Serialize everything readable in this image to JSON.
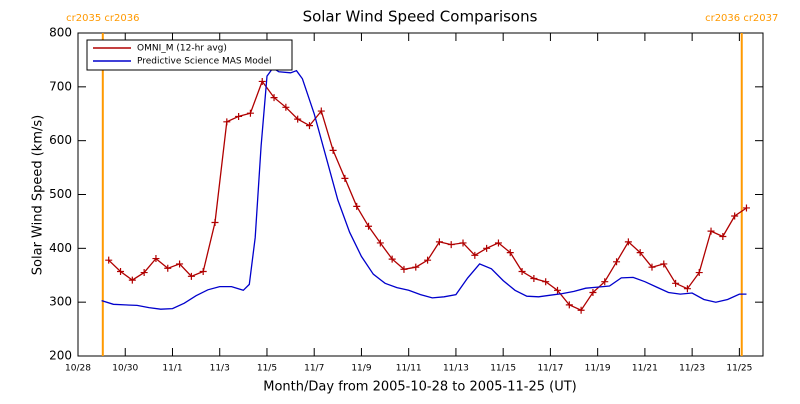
{
  "chart_data": {
    "type": "line",
    "title": "Solar Wind Speed Comparisons",
    "x_label": "Month/Day from 2005-10-28 to 2005-11-25 (UT)",
    "y_label": "Solar Wind Speed (km/s)",
    "xlim": [
      0,
      29
    ],
    "ylim": [
      200,
      800
    ],
    "xticks": [
      {
        "value": 0,
        "label": "10/28"
      },
      {
        "value": 2,
        "label": "10/30"
      },
      {
        "value": 4,
        "label": "11/1"
      },
      {
        "value": 6,
        "label": "11/3"
      },
      {
        "value": 8,
        "label": "11/5"
      },
      {
        "value": 10,
        "label": "11/7"
      },
      {
        "value": 12,
        "label": "11/9"
      },
      {
        "value": 14,
        "label": "11/11"
      },
      {
        "value": 16,
        "label": "11/13"
      },
      {
        "value": 18,
        "label": "11/15"
      },
      {
        "value": 20,
        "label": "11/17"
      },
      {
        "value": 22,
        "label": "11/19"
      },
      {
        "value": 24,
        "label": "11/21"
      },
      {
        "value": 26,
        "label": "11/23"
      },
      {
        "value": 28,
        "label": "11/25"
      }
    ],
    "yticks": [
      200,
      300,
      400,
      500,
      600,
      700,
      800
    ],
    "legend": "upper left",
    "annotations": [
      {
        "text": "cr2035 cr2036",
        "x": 1.05,
        "color": "#ff9900"
      },
      {
        "text": "cr2036 cr2037",
        "x": 28.1,
        "color": "#ff9900"
      }
    ],
    "series": [
      {
        "name": "OMNI_M (12-hr avg)",
        "color": "#b00000",
        "marker": "+",
        "x": [
          1.3,
          1.8,
          2.3,
          2.8,
          3.3,
          3.8,
          4.3,
          4.8,
          5.3,
          5.8,
          6.3,
          6.8,
          7.3,
          7.8,
          8.3,
          8.8,
          9.3,
          9.8,
          10.3,
          10.8,
          11.3,
          11.8,
          12.3,
          12.8,
          13.3,
          13.8,
          14.3,
          14.8,
          15.3,
          15.8,
          16.3,
          16.8,
          17.3,
          17.8,
          18.3,
          18.8,
          19.3,
          19.8,
          20.3,
          20.8,
          21.3,
          21.8,
          22.3,
          22.8,
          23.3,
          23.8,
          24.3,
          24.8,
          25.3,
          25.8,
          26.3,
          26.8,
          27.3,
          27.8,
          28.3
        ],
        "values": [
          378,
          357,
          341,
          355,
          381,
          363,
          371,
          348,
          357,
          448,
          635,
          645,
          651,
          710,
          680,
          662,
          640,
          628,
          655,
          582,
          530,
          478,
          441,
          410,
          380,
          361,
          365,
          378,
          412,
          407,
          410,
          387,
          400,
          410,
          392,
          357,
          344,
          338,
          322,
          295,
          285,
          318,
          338,
          375,
          412,
          392,
          365,
          371,
          335,
          325,
          355,
          432,
          422,
          460,
          475
        ]
      },
      {
        "name": "Predictive Science MAS Model",
        "color": "#0000cc",
        "x": [
          1.0,
          1.5,
          2.0,
          2.5,
          3.0,
          3.5,
          4.0,
          4.5,
          5.0,
          5.5,
          6.0,
          6.5,
          7.0,
          7.25,
          7.5,
          7.75,
          8.0,
          8.25,
          8.5,
          9.0,
          9.25,
          9.5,
          10.0,
          10.5,
          11.0,
          11.5,
          12.0,
          12.5,
          13.0,
          13.5,
          14.0,
          14.5,
          15.0,
          15.5,
          16.0,
          16.5,
          17.0,
          17.5,
          18.0,
          18.5,
          19.0,
          19.5,
          20.0,
          20.5,
          21.0,
          21.5,
          22.0,
          22.5,
          23.0,
          23.5,
          24.0,
          24.5,
          25.0,
          25.5,
          26.0,
          26.5,
          27.0,
          27.5,
          28.0,
          28.3
        ],
        "values": [
          303,
          296,
          295,
          294,
          290,
          287,
          288,
          298,
          312,
          323,
          329,
          329,
          322,
          333,
          420,
          590,
          720,
          735,
          728,
          726,
          730,
          715,
          650,
          570,
          490,
          430,
          385,
          352,
          335,
          327,
          322,
          314,
          308,
          310,
          314,
          345,
          371,
          362,
          340,
          322,
          311,
          310,
          313,
          316,
          320,
          326,
          328,
          330,
          345,
          346,
          338,
          328,
          318,
          315,
          317,
          305,
          300,
          305,
          315,
          315
        ]
      }
    ]
  }
}
